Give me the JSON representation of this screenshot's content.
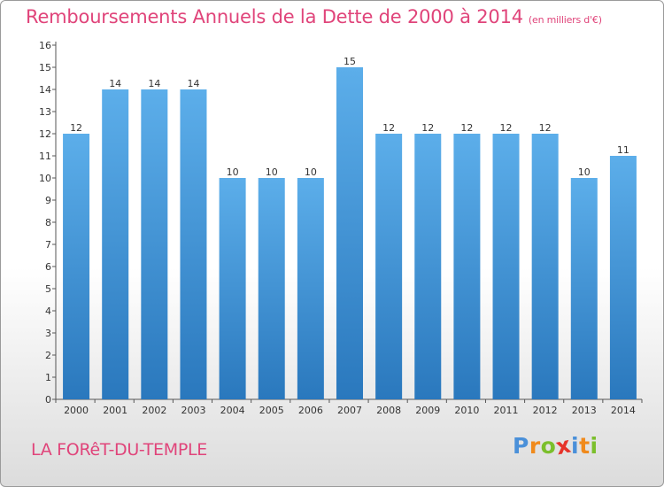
{
  "chart_data": {
    "type": "bar",
    "title": "Remboursements Annuels de la Dette de 2000 à 2014",
    "subtitle": "(en milliers d'€)",
    "categories": [
      "2000",
      "2001",
      "2002",
      "2003",
      "2004",
      "2005",
      "2006",
      "2007",
      "2008",
      "2009",
      "2010",
      "2011",
      "2012",
      "2013",
      "2014"
    ],
    "values": [
      12,
      14,
      14,
      14,
      10,
      10,
      10,
      15,
      12,
      12,
      12,
      12,
      12,
      10,
      11
    ],
    "data_labels": [
      "12",
      "14",
      "14",
      "14",
      "10",
      "10",
      "10",
      "15",
      "12",
      "12",
      "12",
      "12",
      "12",
      "10",
      "11"
    ],
    "y_ticks": [
      "0",
      "1",
      "2",
      "3",
      "4",
      "5",
      "6",
      "7",
      "8",
      "9",
      "10",
      "11",
      "12",
      "13",
      "14",
      "15",
      "16"
    ],
    "ylim": [
      0,
      16
    ],
    "xlabel": "",
    "ylabel": "",
    "grid": false,
    "legend": "none",
    "colors": {
      "bar_top": "#5caeea",
      "bar_bottom": "#2a78bd",
      "label": "#333333",
      "title": "#e0447a"
    }
  },
  "footer": {
    "commune": "LA FORêT-DU-TEMPLE",
    "logo_letters": [
      "P",
      "r",
      "o",
      "x",
      "i",
      "t",
      "i"
    ],
    "logo_colors": [
      "#4a90d9",
      "#f08a1c",
      "#7bbf2c",
      "#e6332a",
      "#4a90d9",
      "#f08a1c",
      "#7bbf2c"
    ]
  }
}
